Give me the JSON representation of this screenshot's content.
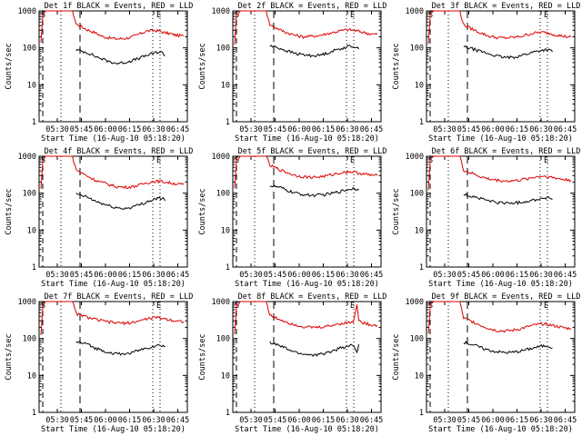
{
  "figure": {
    "ylabel": "Counts/sec",
    "xlabel": "Start Time (16-Aug-10 05:18:20)",
    "title_suffix": "BLACK = Events, RED = LLD",
    "marker_s": "S",
    "marker_e": "E",
    "colors": {
      "events": "#000000",
      "lld": "#dd0000",
      "axis": "#000000"
    }
  },
  "chart_data": [
    {
      "type": "line",
      "title": "Det 1f BLACK = Events, RED = LLD",
      "detector": "1f",
      "xlabel": "Start Time (16-Aug-10 05:18:20)",
      "ylabel": "Counts/sec",
      "x_ticks": [
        "05:30",
        "05:45",
        "06:00",
        "06:15",
        "06:30",
        "06:45"
      ],
      "y_ticks": [
        "1",
        "10",
        "100",
        "1000"
      ],
      "yscale": "log",
      "ylim": [
        1,
        1000
      ],
      "xlim_minutes": [
        15,
        55
      ],
      "series": [
        {
          "name": "RED = LLD",
          "x_min": [
            15.5,
            16,
            17,
            18,
            20,
            22,
            23,
            24,
            25,
            28,
            30,
            32,
            34,
            36,
            38,
            40,
            42,
            44,
            46,
            47.5,
            49,
            50.5,
            52,
            54
          ],
          "y": [
            130,
            800,
            1000,
            1000,
            1000,
            1000,
            1000,
            1000,
            440,
            310,
            260,
            205,
            185,
            175,
            180,
            195,
            235,
            285,
            295,
            285,
            255,
            240,
            220,
            210
          ]
        },
        {
          "name": "BLACK = Events",
          "x_min": [
            25,
            28,
            30,
            32,
            34,
            36,
            38,
            40,
            42,
            44,
            46,
            47.5,
            48.5,
            49
          ],
          "y": [
            88,
            75,
            60,
            50,
            42,
            38,
            40,
            45,
            52,
            62,
            72,
            78,
            72,
            62
          ]
        }
      ]
    },
    {
      "type": "line",
      "title": "Det 2f BLACK = Events, RED = LLD",
      "detector": "2f",
      "xlabel": "Start Time (16-Aug-10 05:18:20)",
      "ylabel": "Counts/sec",
      "x_ticks": [
        "05:30",
        "05:45",
        "06:00",
        "06:15",
        "06:30",
        "06:45"
      ],
      "y_ticks": [
        "1",
        "10",
        "100",
        "1000"
      ],
      "yscale": "log",
      "ylim": [
        1,
        1000
      ],
      "xlim_minutes": [
        15,
        55
      ],
      "series": [
        {
          "name": "RED = LLD",
          "x_min": [
            15.5,
            16,
            17,
            18,
            20,
            22,
            23,
            24,
            25,
            28,
            30,
            32,
            34,
            36,
            38,
            40,
            42,
            44,
            46,
            47.5,
            49,
            50.5,
            52,
            54
          ],
          "y": [
            130,
            800,
            1000,
            1000,
            1000,
            1000,
            1000,
            1000,
            420,
            300,
            250,
            215,
            200,
            205,
            215,
            235,
            260,
            290,
            310,
            300,
            280,
            260,
            240,
            230
          ]
        },
        {
          "name": "BLACK = Events",
          "x_min": [
            25,
            28,
            30,
            32,
            34,
            36,
            38,
            40,
            42,
            44,
            46,
            47.5,
            48.5,
            49
          ],
          "y": [
            115,
            95,
            80,
            70,
            65,
            62,
            62,
            70,
            82,
            95,
            108,
            112,
            100,
            92
          ]
        }
      ]
    },
    {
      "type": "line",
      "title": "Det 3f BLACK = Events, RED = LLD",
      "detector": "3f",
      "xlabel": "Start Time (16-Aug-10 05:18:20)",
      "ylabel": "Counts/sec",
      "x_ticks": [
        "05:30",
        "05:45",
        "06:00",
        "06:15",
        "06:30",
        "06:45"
      ],
      "y_ticks": [
        "1",
        "10",
        "100",
        "1000"
      ],
      "yscale": "log",
      "ylim": [
        1,
        1000
      ],
      "xlim_minutes": [
        15,
        55
      ],
      "series": [
        {
          "name": "RED = LLD",
          "x_min": [
            15.5,
            16,
            17,
            18,
            20,
            22,
            23,
            24,
            25,
            28,
            30,
            32,
            34,
            36,
            38,
            40,
            42,
            44,
            46,
            47.5,
            49,
            50.5,
            52,
            54
          ],
          "y": [
            130,
            800,
            1000,
            1000,
            1000,
            1000,
            1000,
            1000,
            420,
            300,
            245,
            205,
            190,
            185,
            190,
            200,
            225,
            250,
            265,
            255,
            235,
            220,
            205,
            195
          ]
        },
        {
          "name": "BLACK = Events",
          "x_min": [
            25,
            28,
            30,
            32,
            34,
            36,
            38,
            40,
            42,
            44,
            46,
            47.5,
            48.5,
            49
          ],
          "y": [
            108,
            90,
            78,
            68,
            60,
            55,
            55,
            60,
            68,
            78,
            86,
            90,
            84,
            78
          ]
        }
      ]
    },
    {
      "type": "line",
      "title": "Det 4f BLACK = Events, RED = LLD",
      "detector": "4f",
      "xlabel": "Start Time (16-Aug-10 05:18:20)",
      "ylabel": "Counts/sec",
      "x_ticks": [
        "05:30",
        "05:45",
        "06:00",
        "06:15",
        "06:30",
        "06:45"
      ],
      "y_ticks": [
        "1",
        "10",
        "100",
        "1000"
      ],
      "yscale": "log",
      "ylim": [
        1,
        1000
      ],
      "xlim_minutes": [
        15,
        55
      ],
      "series": [
        {
          "name": "RED = LLD",
          "x_min": [
            15.5,
            16,
            17,
            18,
            20,
            22,
            23,
            24,
            25,
            28,
            30,
            32,
            34,
            36,
            38,
            40,
            42,
            44,
            46,
            47.5,
            49,
            50.5,
            52,
            54
          ],
          "y": [
            130,
            800,
            1000,
            1000,
            1000,
            1000,
            1000,
            1000,
            430,
            290,
            230,
            195,
            170,
            150,
            145,
            150,
            165,
            190,
            210,
            210,
            200,
            190,
            180,
            170
          ]
        },
        {
          "name": "BLACK = Events",
          "x_min": [
            25,
            28,
            30,
            32,
            34,
            36,
            38,
            40,
            42,
            44,
            46,
            47.5,
            48.5,
            49
          ],
          "y": [
            95,
            78,
            62,
            52,
            45,
            40,
            38,
            42,
            48,
            58,
            68,
            74,
            70,
            62
          ]
        }
      ]
    },
    {
      "type": "line",
      "title": "Det 5f BLACK = Events, RED = LLD",
      "detector": "5f",
      "xlabel": "Start Time (16-Aug-10 05:18:20)",
      "ylabel": "Counts/sec",
      "x_ticks": [
        "05:30",
        "05:45",
        "06:00",
        "06:15",
        "06:30",
        "06:45"
      ],
      "y_ticks": [
        "1",
        "10",
        "100",
        "1000"
      ],
      "yscale": "log",
      "ylim": [
        1,
        1000
      ],
      "xlim_minutes": [
        15,
        55
      ],
      "series": [
        {
          "name": "RED = LLD",
          "x_min": [
            15.5,
            16,
            17,
            18,
            20,
            22,
            23,
            24,
            25,
            28,
            30,
            32,
            34,
            36,
            38,
            40,
            42,
            44,
            46,
            47.5,
            49,
            50.5,
            52,
            54
          ],
          "y": [
            130,
            800,
            1000,
            1000,
            1000,
            1000,
            1000,
            1000,
            560,
            420,
            350,
            300,
            280,
            270,
            275,
            290,
            320,
            355,
            380,
            375,
            350,
            330,
            310,
            300
          ]
        },
        {
          "name": "BLACK = Events",
          "x_min": [
            25,
            28,
            30,
            32,
            34,
            36,
            38,
            40,
            42,
            44,
            46,
            47.5,
            48.5,
            49
          ],
          "y": [
            160,
            140,
            115,
            100,
            92,
            88,
            88,
            92,
            100,
            112,
            125,
            135,
            130,
            120
          ]
        }
      ]
    },
    {
      "type": "line",
      "title": "Det 6f BLACK = Events, RED = LLD",
      "detector": "6f",
      "xlabel": "Start Time (16-Aug-10 05:18:20)",
      "ylabel": "Counts/sec",
      "x_ticks": [
        "05:30",
        "05:45",
        "06:00",
        "06:15",
        "06:30",
        "06:45"
      ],
      "y_ticks": [
        "1",
        "10",
        "100",
        "1000"
      ],
      "yscale": "log",
      "ylim": [
        1,
        1000
      ],
      "xlim_minutes": [
        15,
        55
      ],
      "series": [
        {
          "name": "RED = LLD",
          "x_min": [
            15.5,
            16,
            17,
            18,
            20,
            22,
            23,
            24,
            25,
            28,
            30,
            32,
            34,
            36,
            38,
            40,
            42,
            44,
            46,
            47.5,
            49,
            50.5,
            52,
            54
          ],
          "y": [
            130,
            800,
            1000,
            1000,
            1000,
            1000,
            1000,
            1000,
            420,
            320,
            270,
            240,
            225,
            215,
            215,
            225,
            245,
            270,
            290,
            285,
            265,
            250,
            235,
            225
          ]
        },
        {
          "name": "BLACK = Events",
          "x_min": [
            25,
            28,
            30,
            32,
            34,
            36,
            38,
            40,
            42,
            44,
            46,
            47.5,
            48.5,
            49
          ],
          "y": [
            92,
            80,
            70,
            62,
            56,
            54,
            54,
            56,
            60,
            66,
            72,
            76,
            72,
            68
          ]
        }
      ]
    },
    {
      "type": "line",
      "title": "Det 7f BLACK = Events, RED = LLD",
      "detector": "7f",
      "xlabel": "Start Time (16-Aug-10 05:18:20)",
      "ylabel": "Counts/sec",
      "x_ticks": [
        "05:30",
        "05:45",
        "06:00",
        "06:15",
        "06:30",
        "06:45"
      ],
      "y_ticks": [
        "1",
        "10",
        "100",
        "1000"
      ],
      "yscale": "log",
      "ylim": [
        1,
        1000
      ],
      "xlim_minutes": [
        15,
        55
      ],
      "series": [
        {
          "name": "RED = LLD",
          "x_min": [
            15.5,
            16,
            17,
            18,
            20,
            22,
            23,
            24,
            25,
            28,
            30,
            32,
            34,
            36,
            38,
            40,
            42,
            44,
            46,
            47.5,
            49,
            50.5,
            52,
            54
          ],
          "y": [
            130,
            800,
            1000,
            1000,
            1000,
            1000,
            1000,
            1000,
            470,
            380,
            330,
            300,
            280,
            265,
            260,
            270,
            300,
            340,
            370,
            365,
            340,
            320,
            300,
            285
          ]
        },
        {
          "name": "BLACK = Events",
          "x_min": [
            25,
            28,
            30,
            32,
            34,
            36,
            38,
            40,
            42,
            44,
            46,
            47.5,
            48.5,
            49
          ],
          "y": [
            82,
            70,
            56,
            48,
            42,
            38,
            38,
            42,
            48,
            55,
            62,
            66,
            64,
            60
          ]
        }
      ]
    },
    {
      "type": "line",
      "title": "Det 8f BLACK = Events, RED = LLD",
      "detector": "8f",
      "xlabel": "Start Time (16-Aug-10 05:18:20)",
      "ylabel": "Counts/sec",
      "x_ticks": [
        "05:30",
        "05:45",
        "06:00",
        "06:15",
        "06:30",
        "06:45"
      ],
      "y_ticks": [
        "1",
        "10",
        "100",
        "1000"
      ],
      "yscale": "log",
      "ylim": [
        1,
        1000
      ],
      "xlim_minutes": [
        15,
        55
      ],
      "series": [
        {
          "name": "RED = LLD",
          "x_min": [
            15.5,
            16,
            17,
            18,
            20,
            22,
            23,
            24,
            25,
            28,
            30,
            32,
            34,
            36,
            38,
            40,
            42,
            44,
            46,
            47.5,
            48.5,
            49,
            50.5,
            52,
            54
          ],
          "y": [
            130,
            800,
            1000,
            1000,
            1000,
            1000,
            1000,
            1000,
            420,
            320,
            270,
            235,
            210,
            200,
            200,
            210,
            230,
            255,
            270,
            280,
            900,
            300,
            260,
            240,
            225
          ]
        },
        {
          "name": "BLACK = Events",
          "x_min": [
            25,
            28,
            30,
            32,
            34,
            36,
            38,
            40,
            42,
            44,
            46,
            47.5,
            48.5,
            49
          ],
          "y": [
            78,
            62,
            50,
            42,
            38,
            36,
            36,
            40,
            46,
            55,
            62,
            66,
            40,
            70
          ]
        }
      ]
    },
    {
      "type": "line",
      "title": "Det 9f BLACK = Events, RED = LLD",
      "detector": "9f",
      "xlabel": "Start Time (16-Aug-10 05:18:20)",
      "ylabel": "Counts/sec",
      "x_ticks": [
        "05:30",
        "05:45",
        "06:00",
        "06:15",
        "06:30",
        "06:45"
      ],
      "y_ticks": [
        "1",
        "10",
        "100",
        "1000"
      ],
      "yscale": "log",
      "ylim": [
        1,
        1000
      ],
      "xlim_minutes": [
        15,
        55
      ],
      "series": [
        {
          "name": "RED = LLD",
          "x_min": [
            15.5,
            16,
            17,
            18,
            20,
            22,
            23,
            24,
            25,
            28,
            30,
            32,
            34,
            36,
            38,
            40,
            42,
            44,
            46,
            47.5,
            49,
            50.5,
            52,
            54
          ],
          "y": [
            130,
            800,
            1000,
            1000,
            1000,
            1000,
            1000,
            1000,
            360,
            270,
            220,
            185,
            165,
            160,
            165,
            180,
            205,
            230,
            250,
            245,
            225,
            210,
            195,
            185
          ]
        },
        {
          "name": "BLACK = Events",
          "x_min": [
            25,
            28,
            30,
            32,
            34,
            36,
            38,
            40,
            42,
            44,
            46,
            47.5,
            48.5,
            49
          ],
          "y": [
            80,
            66,
            55,
            48,
            44,
            42,
            42,
            45,
            50,
            56,
            62,
            64,
            60,
            56
          ]
        }
      ]
    }
  ]
}
